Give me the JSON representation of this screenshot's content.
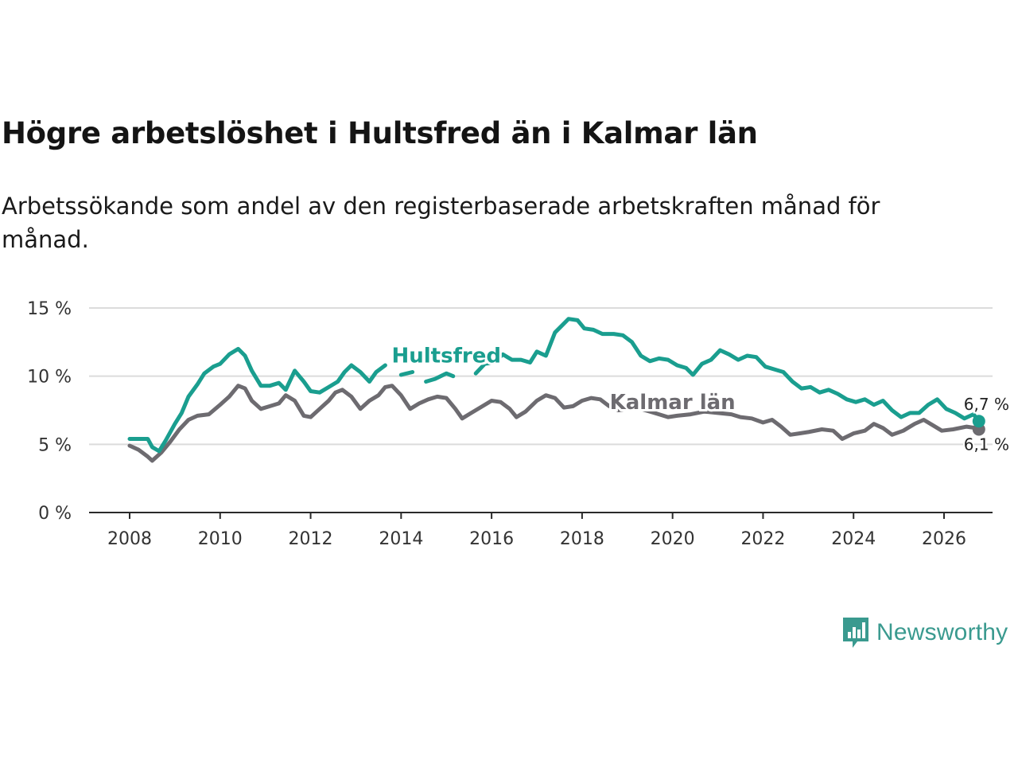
{
  "chart_data": {
    "type": "line",
    "title": "Högre arbetslöshet i Hultsfred än i Kalmar län",
    "subtitle": "Arbetssökande som andel av den registerbaserade arbetskraften månad för månad.",
    "xlabel": "",
    "ylabel": "",
    "x_ticks": [
      "2008",
      "2010",
      "2012",
      "2014",
      "2016",
      "2018",
      "2020",
      "2022",
      "2024",
      "2026"
    ],
    "y_ticks": [
      "0 %",
      "5 %",
      "10 %",
      "15 %"
    ],
    "xlim": [
      2007.9,
      2027.1
    ],
    "ylim": [
      0,
      15
    ],
    "grid": true,
    "series": [
      {
        "name": "Kalmar län",
        "color": "#6d6b70",
        "end_label": "6,1 %",
        "points": [
          [
            2008.0,
            4.9
          ],
          [
            2008.2,
            4.6
          ],
          [
            2008.4,
            4.1
          ],
          [
            2008.5,
            3.8
          ],
          [
            2008.7,
            4.4
          ],
          [
            2008.9,
            5.2
          ],
          [
            2009.1,
            6.1
          ],
          [
            2009.3,
            6.8
          ],
          [
            2009.5,
            7.1
          ],
          [
            2009.75,
            7.2
          ],
          [
            2010.0,
            7.9
          ],
          [
            2010.2,
            8.5
          ],
          [
            2010.4,
            9.3
          ],
          [
            2010.55,
            9.1
          ],
          [
            2010.7,
            8.2
          ],
          [
            2010.9,
            7.6
          ],
          [
            2011.1,
            7.8
          ],
          [
            2011.3,
            8.0
          ],
          [
            2011.45,
            8.6
          ],
          [
            2011.65,
            8.2
          ],
          [
            2011.85,
            7.1
          ],
          [
            2012.0,
            7.0
          ],
          [
            2012.2,
            7.6
          ],
          [
            2012.4,
            8.2
          ],
          [
            2012.55,
            8.8
          ],
          [
            2012.7,
            9.0
          ],
          [
            2012.9,
            8.5
          ],
          [
            2013.1,
            7.6
          ],
          [
            2013.3,
            8.2
          ],
          [
            2013.5,
            8.6
          ],
          [
            2013.65,
            9.2
          ],
          [
            2013.8,
            9.3
          ],
          [
            2014.0,
            8.6
          ],
          [
            2014.2,
            7.6
          ],
          [
            2014.4,
            8.0
          ],
          [
            2014.6,
            8.3
          ],
          [
            2014.8,
            8.5
          ],
          [
            2015.0,
            8.4
          ],
          [
            2015.2,
            7.6
          ],
          [
            2015.35,
            6.9
          ],
          [
            2015.55,
            7.3
          ],
          [
            2015.8,
            7.8
          ],
          [
            2016.0,
            8.2
          ],
          [
            2016.2,
            8.1
          ],
          [
            2016.4,
            7.6
          ],
          [
            2016.55,
            7.0
          ],
          [
            2016.75,
            7.4
          ],
          [
            2017.0,
            8.2
          ],
          [
            2017.2,
            8.6
          ],
          [
            2017.4,
            8.4
          ],
          [
            2017.6,
            7.7
          ],
          [
            2017.8,
            7.8
          ],
          [
            2018.0,
            8.2
          ],
          [
            2018.2,
            8.4
          ],
          [
            2018.4,
            8.3
          ],
          [
            2018.6,
            7.8
          ],
          [
            2018.8,
            7.5
          ],
          [
            2019.0,
            7.6
          ],
          [
            2019.3,
            7.6
          ],
          [
            2019.6,
            7.3
          ],
          [
            2019.9,
            7.0
          ],
          [
            2020.1,
            7.1
          ],
          [
            2020.4,
            7.2
          ],
          [
            2020.7,
            7.4
          ],
          [
            2021.0,
            7.3
          ],
          [
            2021.3,
            7.2
          ],
          [
            2021.5,
            7.0
          ],
          [
            2021.75,
            6.9
          ],
          [
            2022.0,
            6.6
          ],
          [
            2022.2,
            6.8
          ],
          [
            2022.4,
            6.3
          ],
          [
            2022.6,
            5.7
          ],
          [
            2022.8,
            5.8
          ],
          [
            2023.0,
            5.9
          ],
          [
            2023.3,
            6.1
          ],
          [
            2023.55,
            6.0
          ],
          [
            2023.75,
            5.4
          ],
          [
            2024.0,
            5.8
          ],
          [
            2024.25,
            6.0
          ],
          [
            2024.45,
            6.5
          ],
          [
            2024.65,
            6.2
          ],
          [
            2024.85,
            5.7
          ],
          [
            2025.1,
            6.0
          ],
          [
            2025.35,
            6.5
          ],
          [
            2025.55,
            6.8
          ],
          [
            2025.75,
            6.4
          ],
          [
            2025.95,
            6.0
          ],
          [
            2026.2,
            6.1
          ],
          [
            2026.5,
            6.3
          ],
          [
            2026.7,
            6.2
          ],
          [
            2026.77,
            6.1
          ]
        ]
      },
      {
        "name": "Hultsfred",
        "color": "#1a9e8f",
        "end_label": "6,7 %",
        "points": [
          [
            2008.0,
            5.4
          ],
          [
            2008.2,
            5.4
          ],
          [
            2008.4,
            5.4
          ],
          [
            2008.5,
            4.8
          ],
          [
            2008.65,
            4.5
          ],
          [
            2008.8,
            5.3
          ],
          [
            2009.0,
            6.5
          ],
          [
            2009.15,
            7.3
          ],
          [
            2009.3,
            8.5
          ],
          [
            2009.5,
            9.4
          ],
          [
            2009.65,
            10.2
          ],
          [
            2009.85,
            10.7
          ],
          [
            2010.0,
            10.9
          ],
          [
            2010.2,
            11.6
          ],
          [
            2010.4,
            12.0
          ],
          [
            2010.55,
            11.5
          ],
          [
            2010.7,
            10.4
          ],
          [
            2010.9,
            9.3
          ],
          [
            2011.1,
            9.3
          ],
          [
            2011.3,
            9.5
          ],
          [
            2011.45,
            9.0
          ],
          [
            2011.65,
            10.4
          ],
          [
            2011.85,
            9.6
          ],
          [
            2012.0,
            8.9
          ],
          [
            2012.2,
            8.8
          ],
          [
            2012.4,
            9.2
          ],
          [
            2012.6,
            9.6
          ],
          [
            2012.75,
            10.3
          ],
          [
            2012.9,
            10.8
          ],
          [
            2013.1,
            10.3
          ],
          [
            2013.3,
            9.6
          ],
          [
            2013.45,
            10.3
          ],
          [
            2013.65,
            10.8
          ]
        ],
        "points_b": [
          [
            2014.0,
            10.1
          ],
          [
            2014.25,
            10.3
          ]
        ],
        "points_c": [
          [
            2014.55,
            9.6
          ],
          [
            2014.75,
            9.8
          ],
          [
            2015.0,
            10.2
          ],
          [
            2015.15,
            10.0
          ]
        ],
        "points_d": [
          [
            2015.65,
            10.2
          ],
          [
            2015.85,
            10.9
          ],
          [
            2016.05,
            11.0
          ],
          [
            2016.25,
            11.6
          ],
          [
            2016.45,
            11.2
          ],
          [
            2016.65,
            11.2
          ],
          [
            2016.85,
            11.0
          ],
          [
            2017.0,
            11.8
          ],
          [
            2017.2,
            11.5
          ],
          [
            2017.4,
            13.2
          ],
          [
            2017.55,
            13.7
          ],
          [
            2017.7,
            14.2
          ],
          [
            2017.9,
            14.1
          ],
          [
            2018.05,
            13.5
          ],
          [
            2018.25,
            13.4
          ],
          [
            2018.45,
            13.1
          ],
          [
            2018.7,
            13.1
          ],
          [
            2018.9,
            13.0
          ],
          [
            2019.1,
            12.5
          ],
          [
            2019.3,
            11.5
          ],
          [
            2019.5,
            11.1
          ],
          [
            2019.7,
            11.3
          ],
          [
            2019.9,
            11.2
          ],
          [
            2020.1,
            10.8
          ],
          [
            2020.3,
            10.6
          ],
          [
            2020.45,
            10.1
          ],
          [
            2020.65,
            10.9
          ],
          [
            2020.85,
            11.2
          ],
          [
            2021.05,
            11.9
          ],
          [
            2021.25,
            11.6
          ],
          [
            2021.45,
            11.2
          ],
          [
            2021.65,
            11.5
          ],
          [
            2021.85,
            11.4
          ],
          [
            2022.05,
            10.7
          ],
          [
            2022.25,
            10.5
          ],
          [
            2022.45,
            10.3
          ],
          [
            2022.65,
            9.6
          ],
          [
            2022.85,
            9.1
          ],
          [
            2023.05,
            9.2
          ],
          [
            2023.25,
            8.8
          ],
          [
            2023.45,
            9.0
          ],
          [
            2023.65,
            8.7
          ],
          [
            2023.85,
            8.3
          ],
          [
            2024.05,
            8.1
          ],
          [
            2024.25,
            8.3
          ],
          [
            2024.45,
            7.9
          ],
          [
            2024.65,
            8.2
          ],
          [
            2024.85,
            7.5
          ],
          [
            2025.05,
            7.0
          ],
          [
            2025.25,
            7.3
          ],
          [
            2025.45,
            7.3
          ],
          [
            2025.65,
            7.9
          ],
          [
            2025.85,
            8.3
          ],
          [
            2026.05,
            7.6
          ],
          [
            2026.25,
            7.3
          ],
          [
            2026.45,
            6.9
          ],
          [
            2026.65,
            7.2
          ],
          [
            2026.77,
            6.7
          ]
        ]
      }
    ]
  },
  "brand": {
    "name": "Newsworthy",
    "color": "#3a9a8f"
  }
}
